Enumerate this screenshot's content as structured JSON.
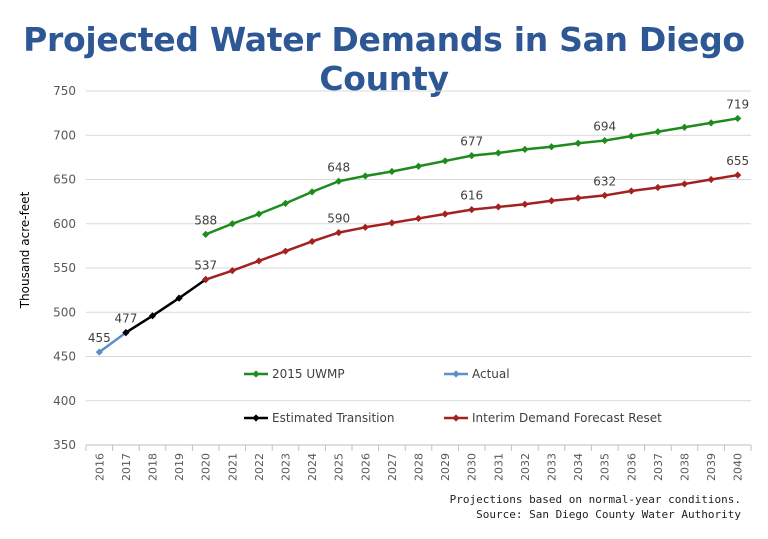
{
  "title": "Projected Water Demands in San Diego County",
  "footnote": "Projections based on normal-year conditions.",
  "source": "Source: San Diego County Water Authority",
  "colors": {
    "uwmp": "#1d8c1d",
    "actual": "#5b8fc9",
    "transition": "#000000",
    "reset": "#a32121",
    "title": "#2e5795"
  },
  "chart_data": {
    "type": "line",
    "title": "Projected Water Demands in San Diego County",
    "xlabel": "",
    "ylabel": "Thousand acre-feet",
    "ylim": [
      350,
      750
    ],
    "yticks": [
      "350",
      "400",
      "450",
      "500",
      "550",
      "600",
      "650",
      "700",
      "750"
    ],
    "categories": [
      "2016",
      "2017",
      "2018",
      "2019",
      "2020",
      "2021",
      "2022",
      "2023",
      "2024",
      "2025",
      "2026",
      "2027",
      "2028",
      "2029",
      "2030",
      "2031",
      "2032",
      "2033",
      "2034",
      "2035",
      "2036",
      "2037",
      "2038",
      "2039",
      "2040"
    ],
    "grid": true,
    "series": [
      {
        "name": "2015 UWMP",
        "color": "#1d8c1d",
        "x": [
          "2020",
          "2021",
          "2022",
          "2023",
          "2024",
          "2025",
          "2026",
          "2027",
          "2028",
          "2029",
          "2030",
          "2031",
          "2032",
          "2033",
          "2034",
          "2035",
          "2036",
          "2037",
          "2038",
          "2039",
          "2040"
        ],
        "values": [
          588,
          600,
          611,
          623,
          636,
          648,
          654,
          659,
          665,
          671,
          677,
          680,
          684,
          687,
          691,
          694,
          699,
          704,
          709,
          714,
          719
        ],
        "labeled": [
          "2020",
          "2025",
          "2030",
          "2035",
          "2040"
        ]
      },
      {
        "name": "Actual",
        "color": "#5b8fc9",
        "x": [
          "2016",
          "2017"
        ],
        "values": [
          455,
          477
        ],
        "labeled": [
          "2016",
          "2017"
        ]
      },
      {
        "name": "Estimated Transition",
        "color": "#000000",
        "x": [
          "2017",
          "2018",
          "2019",
          "2020"
        ],
        "values": [
          477,
          496,
          516,
          537
        ],
        "labeled": []
      },
      {
        "name": "Interim Demand Forecast Reset",
        "color": "#a32121",
        "x": [
          "2020",
          "2021",
          "2022",
          "2023",
          "2024",
          "2025",
          "2026",
          "2027",
          "2028",
          "2029",
          "2030",
          "2031",
          "2032",
          "2033",
          "2034",
          "2035",
          "2036",
          "2037",
          "2038",
          "2039",
          "2040"
        ],
        "values": [
          537,
          547,
          558,
          569,
          580,
          590,
          596,
          601,
          606,
          611,
          616,
          619,
          622,
          626,
          629,
          632,
          637,
          641,
          645,
          650,
          655
        ],
        "labeled": [
          "2020",
          "2025",
          "2030",
          "2035",
          "2040"
        ]
      }
    ],
    "legend": [
      {
        "label": "2015 UWMP",
        "series": 0
      },
      {
        "label": "Actual",
        "series": 1
      },
      {
        "label": "Estimated Transition",
        "series": 2
      },
      {
        "label": "Interim Demand Forecast Reset",
        "series": 3
      }
    ]
  }
}
